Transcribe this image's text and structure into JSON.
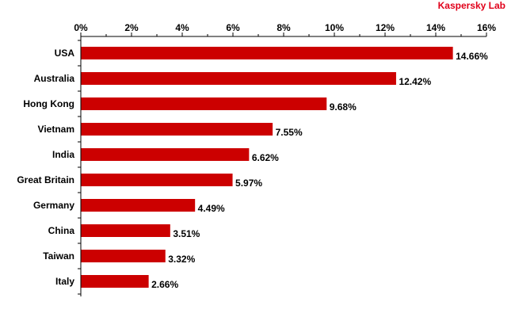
{
  "brand": "Kaspersky Lab",
  "colors": {
    "bar": "#cc0000",
    "axis": "#000000",
    "brand": "#e0001a"
  },
  "chart_data": {
    "type": "bar",
    "orientation": "horizontal",
    "categories": [
      "USA",
      "Australia",
      "Hong Kong",
      "Vietnam",
      "India",
      "Great Britain",
      "Germany",
      "China",
      "Taiwan",
      "Italy"
    ],
    "values": [
      14.66,
      12.42,
      9.68,
      7.55,
      6.62,
      5.97,
      4.49,
      3.51,
      3.32,
      2.66
    ],
    "value_labels": [
      "14.66%",
      "12.42%",
      "9.68%",
      "7.55%",
      "6.62%",
      "5.97%",
      "4.49%",
      "3.51%",
      "3.32%",
      "2.66%"
    ],
    "x_ticks": [
      0,
      2,
      4,
      6,
      8,
      10,
      12,
      14,
      16
    ],
    "x_tick_labels": [
      "0%",
      "2%",
      "4%",
      "6%",
      "8%",
      "10%",
      "12%",
      "14%",
      "16%"
    ],
    "xlim": [
      0,
      16
    ],
    "x_axis_position": "top",
    "grid": false,
    "legend": "none",
    "title": "",
    "xlabel": "",
    "ylabel": ""
  }
}
